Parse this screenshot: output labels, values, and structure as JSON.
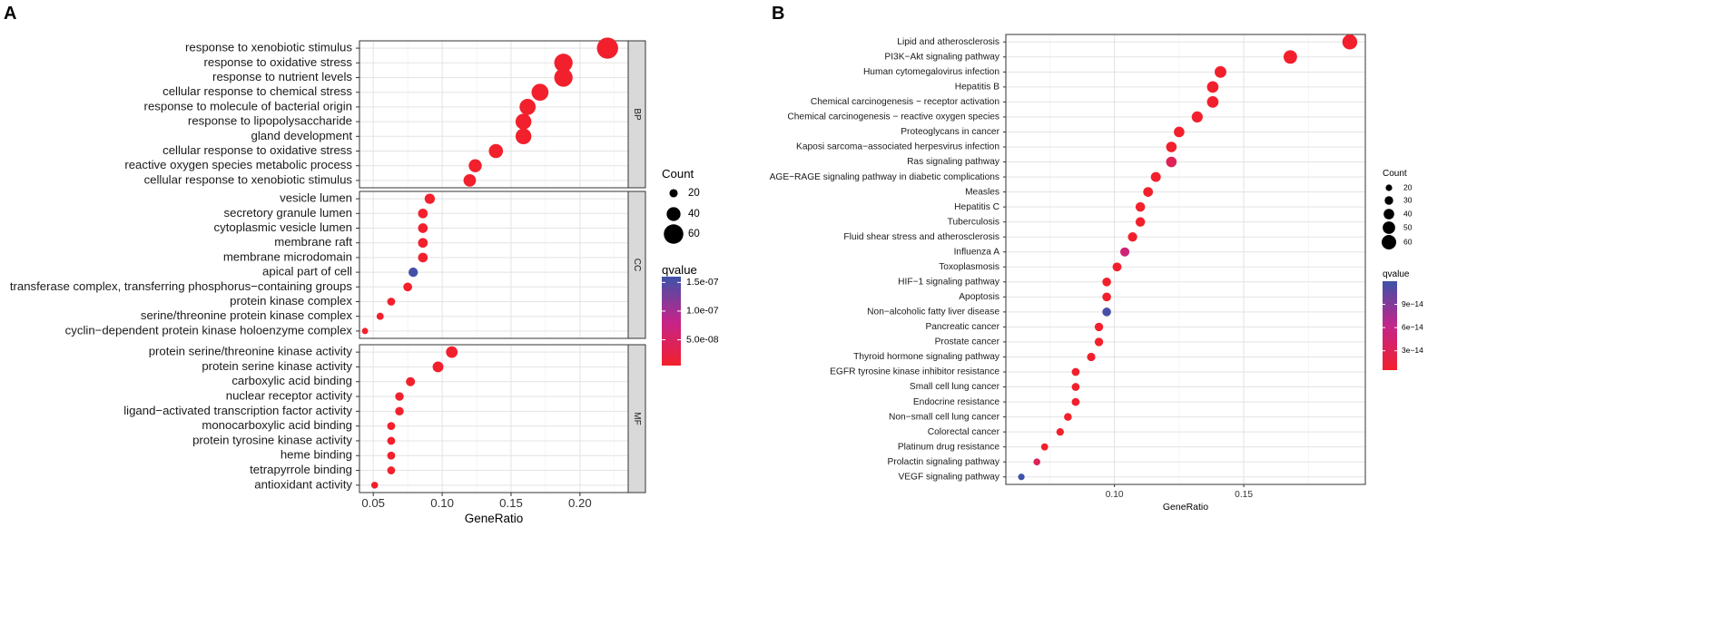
{
  "chart_data": [
    {
      "type": "scatter",
      "panel_label": "A",
      "xlabel": "GeneRatio",
      "xlim": [
        0.04,
        0.235
      ],
      "xticks": [
        0.05,
        0.1,
        0.15,
        0.2
      ],
      "xtick_labels": [
        "0.05",
        "0.10",
        "0.15",
        "0.20"
      ],
      "grid": true,
      "legend_position": "right",
      "size_legend": {
        "title": "Count",
        "values": [
          20,
          40,
          60
        ],
        "labels": [
          "20",
          "40",
          "60"
        ]
      },
      "color_legend": {
        "title": "qvalue",
        "ticks": [
          1.5e-07,
          1e-07,
          5e-08
        ],
        "labels": [
          "1.5e-07",
          "1.0e-07",
          "5.0e-08"
        ],
        "range": [
          5e-09,
          1.6e-07
        ],
        "low_color": "#f2202c",
        "mid_color": "#c4248a",
        "high_color": "#3d52a8"
      },
      "facets": [
        {
          "strip": "BP",
          "terms": [
            {
              "label": "response to xenobiotic stimulus",
              "x": 0.22,
              "count": 66,
              "q": 1e-09
            },
            {
              "label": "response to oxidative stress",
              "x": 0.188,
              "count": 56,
              "q": 1e-09
            },
            {
              "label": "response to nutrient levels",
              "x": 0.188,
              "count": 56,
              "q": 1e-09
            },
            {
              "label": "cellular response to chemical stress",
              "x": 0.171,
              "count": 51,
              "q": 1e-09
            },
            {
              "label": "response to molecule of bacterial origin",
              "x": 0.162,
              "count": 48,
              "q": 1e-09
            },
            {
              "label": "response to lipopolysaccharide",
              "x": 0.159,
              "count": 47,
              "q": 1e-09
            },
            {
              "label": "gland development",
              "x": 0.159,
              "count": 47,
              "q": 1e-09
            },
            {
              "label": "cellular response to oxidative stress",
              "x": 0.139,
              "count": 41,
              "q": 1e-09
            },
            {
              "label": "reactive oxygen species metabolic process",
              "x": 0.124,
              "count": 37,
              "q": 1e-09
            },
            {
              "label": "cellular response to xenobiotic stimulus",
              "x": 0.12,
              "count": 35,
              "q": 1e-09
            }
          ]
        },
        {
          "strip": "CC",
          "terms": [
            {
              "label": "vesicle lumen",
              "x": 0.091,
              "count": 27,
              "q": 1e-09
            },
            {
              "label": "secretory granule lumen",
              "x": 0.086,
              "count": 25,
              "q": 1e-09
            },
            {
              "label": "cytoplasmic vesicle lumen",
              "x": 0.086,
              "count": 25,
              "q": 1e-09
            },
            {
              "label": "membrane raft",
              "x": 0.086,
              "count": 25,
              "q": 1e-09
            },
            {
              "label": "membrane microdomain",
              "x": 0.086,
              "count": 25,
              "q": 1e-09
            },
            {
              "label": "apical part of cell",
              "x": 0.079,
              "count": 24,
              "q": 1.55e-07
            },
            {
              "label": "transferase complex, transferring phosphorus−containing groups",
              "x": 0.075,
              "count": 22,
              "q": 1e-09
            },
            {
              "label": "protein kinase complex",
              "x": 0.063,
              "count": 19,
              "q": 1e-09
            },
            {
              "label": "serine/threonine protein kinase complex",
              "x": 0.055,
              "count": 16,
              "q": 1e-09
            },
            {
              "label": "cyclin−dependent protein kinase holoenzyme complex",
              "x": 0.044,
              "count": 13,
              "q": 1e-09
            }
          ]
        },
        {
          "strip": "MF",
          "terms": [
            {
              "label": "protein serine/threonine kinase activity",
              "x": 0.107,
              "count": 32,
              "q": 1e-09
            },
            {
              "label": "protein serine kinase activity",
              "x": 0.097,
              "count": 29,
              "q": 1e-09
            },
            {
              "label": "carboxylic acid binding",
              "x": 0.077,
              "count": 23,
              "q": 1e-09
            },
            {
              "label": "nuclear receptor activity",
              "x": 0.069,
              "count": 21,
              "q": 1e-09
            },
            {
              "label": "ligand−activated transcription factor activity",
              "x": 0.069,
              "count": 21,
              "q": 1e-09
            },
            {
              "label": "monocarboxylic acid binding",
              "x": 0.063,
              "count": 19,
              "q": 1e-09
            },
            {
              "label": "protein tyrosine kinase activity",
              "x": 0.063,
              "count": 19,
              "q": 1e-09
            },
            {
              "label": "heme binding",
              "x": 0.063,
              "count": 19,
              "q": 1e-09
            },
            {
              "label": "tetrapyrrole binding",
              "x": 0.063,
              "count": 19,
              "q": 1e-09
            },
            {
              "label": "antioxidant activity",
              "x": 0.051,
              "count": 15,
              "q": 1e-09
            }
          ]
        }
      ]
    },
    {
      "type": "scatter",
      "panel_label": "B",
      "xlabel": "GeneRatio",
      "xlim": [
        0.058,
        0.197
      ],
      "xticks": [
        0.1,
        0.15
      ],
      "xtick_labels": [
        "0.10",
        "0.15"
      ],
      "grid": true,
      "legend_position": "right",
      "size_legend": {
        "title": "Count",
        "values": [
          20,
          30,
          40,
          50,
          60
        ],
        "labels": [
          "20",
          "30",
          "40",
          "50",
          "60"
        ]
      },
      "color_legend": {
        "title": "qvalue",
        "ticks": [
          9e-14,
          6e-14,
          3e-14
        ],
        "labels": [
          "9e−14",
          "6e−14",
          "3e−14"
        ],
        "range": [
          5e-15,
          1.2e-13
        ],
        "low_color": "#f2202c",
        "mid_color": "#c4248a",
        "high_color": "#3d52a8"
      },
      "terms": [
        {
          "label": "Lipid and atherosclerosis",
          "x": 0.191,
          "count": 62,
          "q": 1e-16
        },
        {
          "label": "PI3K−Akt signaling pathway",
          "x": 0.168,
          "count": 55,
          "q": 1e-16
        },
        {
          "label": "Human cytomegalovirus infection",
          "x": 0.141,
          "count": 46,
          "q": 1e-16
        },
        {
          "label": "Hepatitis B",
          "x": 0.138,
          "count": 45,
          "q": 1e-16
        },
        {
          "label": "Chemical carcinogenesis − receptor activation",
          "x": 0.138,
          "count": 45,
          "q": 1e-16
        },
        {
          "label": "Chemical carcinogenesis − reactive oxygen species",
          "x": 0.132,
          "count": 43,
          "q": 1e-16
        },
        {
          "label": "Proteoglycans in cancer",
          "x": 0.125,
          "count": 40,
          "q": 1e-16
        },
        {
          "label": "Kaposi sarcoma−associated herpesvirus infection",
          "x": 0.122,
          "count": 40,
          "q": 1e-16
        },
        {
          "label": "Ras signaling pathway",
          "x": 0.122,
          "count": 40,
          "q": 3e-14
        },
        {
          "label": "AGE−RAGE signaling pathway in diabetic complications",
          "x": 0.116,
          "count": 37,
          "q": 1e-16
        },
        {
          "label": "Measles",
          "x": 0.113,
          "count": 36,
          "q": 1e-16
        },
        {
          "label": "Hepatitis C",
          "x": 0.11,
          "count": 35,
          "q": 1e-16
        },
        {
          "label": "Tuberculosis",
          "x": 0.11,
          "count": 35,
          "q": 1e-16
        },
        {
          "label": "Fluid shear stress and atherosclerosis",
          "x": 0.107,
          "count": 34,
          "q": 1e-16
        },
        {
          "label": "Influenza A",
          "x": 0.104,
          "count": 33,
          "q": 5e-14
        },
        {
          "label": "Toxoplasmosis",
          "x": 0.101,
          "count": 32,
          "q": 1e-16
        },
        {
          "label": "HIF−1 signaling pathway",
          "x": 0.097,
          "count": 31,
          "q": 1e-16
        },
        {
          "label": "Apoptosis",
          "x": 0.097,
          "count": 31,
          "q": 1e-16
        },
        {
          "label": "Non−alcoholic fatty liver disease",
          "x": 0.097,
          "count": 31,
          "q": 1.15e-13
        },
        {
          "label": "Pancreatic cancer",
          "x": 0.094,
          "count": 30,
          "q": 1e-16
        },
        {
          "label": "Prostate cancer",
          "x": 0.094,
          "count": 30,
          "q": 1e-16
        },
        {
          "label": "Thyroid hormone signaling pathway",
          "x": 0.091,
          "count": 29,
          "q": 1e-16
        },
        {
          "label": "EGFR tyrosine kinase inhibitor resistance",
          "x": 0.085,
          "count": 27,
          "q": 1e-16
        },
        {
          "label": "Small cell lung cancer",
          "x": 0.085,
          "count": 27,
          "q": 1e-16
        },
        {
          "label": "Endocrine resistance",
          "x": 0.085,
          "count": 27,
          "q": 1e-16
        },
        {
          "label": "Non−small cell lung cancer",
          "x": 0.082,
          "count": 26,
          "q": 1e-16
        },
        {
          "label": "Colorectal cancer",
          "x": 0.079,
          "count": 25,
          "q": 1e-16
        },
        {
          "label": "Platinum drug resistance",
          "x": 0.073,
          "count": 23,
          "q": 1e-16
        },
        {
          "label": "Prolactin signaling pathway",
          "x": 0.07,
          "count": 22,
          "q": 3e-14
        },
        {
          "label": "VEGF signaling pathway",
          "x": 0.064,
          "count": 20,
          "q": 1.2e-13
        }
      ]
    }
  ]
}
